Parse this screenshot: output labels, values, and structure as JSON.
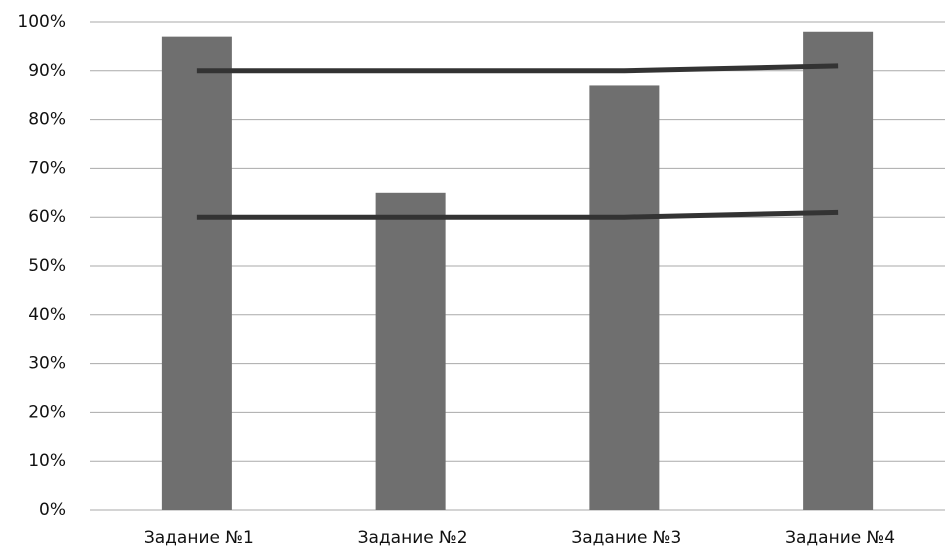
{
  "chart_data": {
    "type": "bar",
    "categories": [
      "Задание №1",
      "Задание №2",
      "Задание №3",
      "Задание №4"
    ],
    "series": [
      {
        "type": "bar",
        "color": "#6f6f6f",
        "values": [
          97,
          65,
          87,
          98
        ]
      },
      {
        "type": "line",
        "color": "#333333",
        "values": [
          90,
          90,
          90,
          91
        ]
      },
      {
        "type": "line",
        "color": "#333333",
        "values": [
          60,
          60,
          60,
          61
        ]
      }
    ],
    "ylim": [
      0,
      100
    ],
    "yticks": [
      {
        "value": 0,
        "label": "0%"
      },
      {
        "value": 10,
        "label": "10%"
      },
      {
        "value": 20,
        "label": "20%"
      },
      {
        "value": 30,
        "label": "30%"
      },
      {
        "value": 40,
        "label": "40%"
      },
      {
        "value": 50,
        "label": "50%"
      },
      {
        "value": 60,
        "label": "60%"
      },
      {
        "value": 70,
        "label": "70%"
      },
      {
        "value": 80,
        "label": "80%"
      },
      {
        "value": 90,
        "label": "90%"
      },
      {
        "value": 100,
        "label": "100%"
      }
    ],
    "grid": true
  }
}
